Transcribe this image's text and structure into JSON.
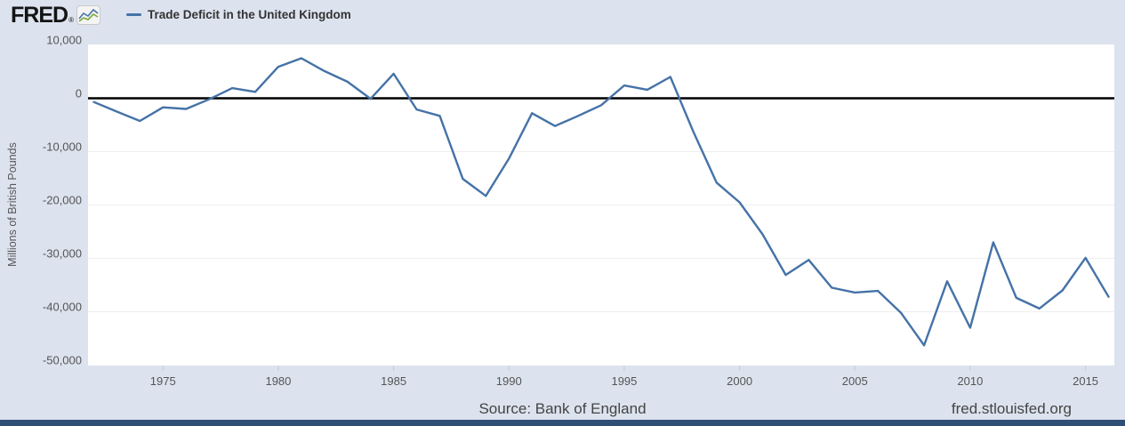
{
  "page_title": "Trade Deficit in the United Kingdom",
  "header": {
    "logo_text": "FRED",
    "logo_registered": "®",
    "logo_icon": "fred-sparkline-icon"
  },
  "legend": {
    "swatch": "blue-line-swatch",
    "label": "Trade Deficit in the United Kingdom"
  },
  "yaxis": {
    "title": "Millions of British Pounds",
    "tick_labels": [
      "10,000",
      "0",
      "-10,000",
      "-20,000",
      "-30,000",
      "-40,000",
      "-50,000"
    ],
    "tick_values": [
      10000,
      0,
      -10000,
      -20000,
      -30000,
      -40000,
      -50000
    ]
  },
  "xaxis": {
    "tick_labels": [
      "1975",
      "1980",
      "1985",
      "1990",
      "1995",
      "2000",
      "2005",
      "2010",
      "2015"
    ],
    "tick_values": [
      1975,
      1980,
      1985,
      1990,
      1995,
      2000,
      2005,
      2010,
      2015
    ]
  },
  "footer": {
    "source": "Source: Bank of England",
    "site": "fred.stlouisfed.org"
  },
  "colors": {
    "background": "#dce3ee",
    "plot_background": "#ffffff",
    "series_line": "#4572a7",
    "zero_line": "#000000",
    "gridline": "#efefef",
    "tick_mark": "#c5ccd6",
    "footer_bar": "#2f5076",
    "icon_green": "#7aa93c"
  },
  "chart_data": {
    "type": "line",
    "title": "Trade Deficit in the United Kingdom",
    "xlabel": "",
    "ylabel": "Millions of British Pounds",
    "ylim": [
      -50000,
      10000
    ],
    "xlim": [
      1971.75,
      2016.25
    ],
    "grid": true,
    "legend_position": "top-left",
    "zero_line": true,
    "x": [
      1972,
      1973,
      1974,
      1975,
      1976,
      1977,
      1978,
      1979,
      1980,
      1981,
      1982,
      1983,
      1984,
      1985,
      1986,
      1987,
      1988,
      1989,
      1990,
      1991,
      1992,
      1993,
      1994,
      1995,
      1996,
      1997,
      1998,
      1999,
      2000,
      2001,
      2002,
      2003,
      2004,
      2005,
      2006,
      2007,
      2008,
      2009,
      2010,
      2011,
      2012,
      2013,
      2014,
      2015,
      2016
    ],
    "values": [
      -700,
      -2500,
      -4250,
      -1700,
      -2000,
      -200,
      1900,
      1200,
      5900,
      7500,
      5100,
      3100,
      -100,
      4600,
      -2100,
      -3300,
      -15100,
      -18300,
      -11300,
      -2800,
      -5200,
      -3300,
      -1300,
      2400,
      1600,
      4000,
      -6300,
      -15800,
      -19500,
      -25500,
      -33100,
      -30300,
      -35500,
      -36400,
      -36100,
      -40200,
      -46300,
      -34300,
      -43000,
      -27000,
      -37400,
      -39400,
      -36000,
      -29900,
      -37200
    ]
  }
}
